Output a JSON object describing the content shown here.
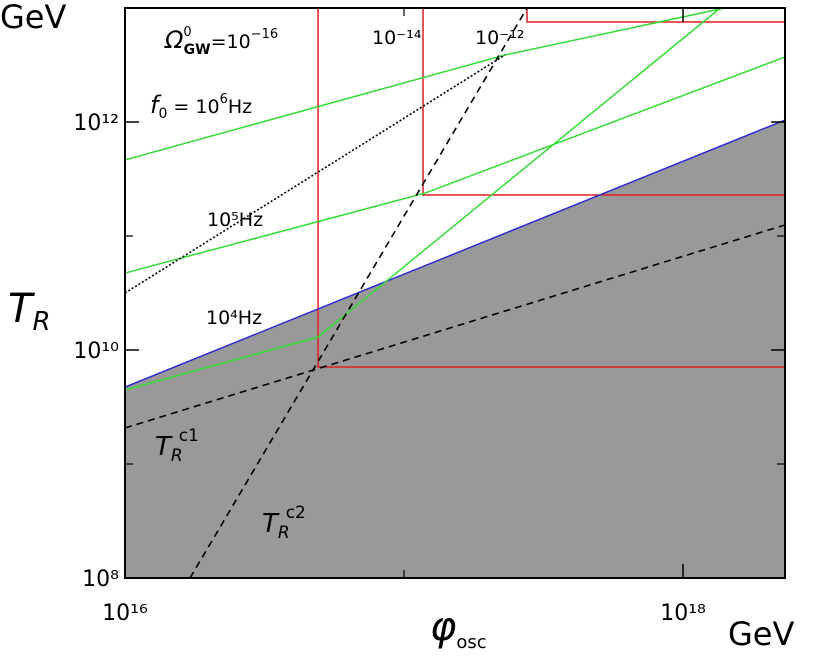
{
  "chart_data": {
    "type": "line",
    "x_label": [
      "φ",
      "osc"
    ],
    "y_label": [
      "T",
      "R"
    ],
    "x_unit": "GeV",
    "y_unit": "GeV",
    "xscale": "log",
    "yscale": "log",
    "xlim": [
      1e+16,
      2.32e+18
    ],
    "ylim": [
      100000000.0,
      10000000000000.0
    ],
    "xticks": [
      {
        "value": 1e+16,
        "label": "10¹⁶"
      },
      {
        "value": 1e+18,
        "label": "10¹⁸"
      }
    ],
    "xminor_ticks": [
      1e+17
    ],
    "yticks": [
      {
        "value": 100000000.0,
        "label": "10⁸"
      },
      {
        "value": 10000000000.0,
        "label": "10¹⁰"
      },
      {
        "value": 1000000000000.0,
        "label": "10¹²"
      }
    ],
    "yminor_ticks": [
      1000000000.0,
      100000000000.0
    ],
    "series": [
      {
        "x": [
          1e+16,
          2.32e+18
        ],
        "y": [
          4730000000.0,
          1040000000000.0
        ],
        "color": "#2b2bd6",
        "dash": "solid",
        "area_color": "#999999"
      },
      {
        "x": [
          1e+16,
          2.3e+17,
          1.41e+18
        ],
        "y": [
          465000000000.0,
          3870000000000.0,
          10000000000000.0
        ],
        "color": "#33dd33",
        "dash": "solid"
      },
      {
        "x": [
          1e+16,
          1.19e+17,
          2.32e+18
        ],
        "y": [
          47300000000.0,
          238000000000.0,
          3720000000000.0
        ],
        "color": "#33dd33",
        "dash": "solid"
      },
      {
        "x": [
          1e+16,
          4.92e+16,
          1.36e+18
        ],
        "y": [
          4460000000.0,
          13000000000.0,
          10000000000000.0
        ],
        "color": "#33dd33",
        "dash": "solid"
      },
      {
        "x": [
          1.71e+16,
          2.76e+17
        ],
        "y": [
          100000000.0,
          10000000000000.0
        ],
        "color": "#000000",
        "dash": "dashed"
      },
      {
        "x": [
          1e+16,
          2.32e+18
        ],
        "y": [
          2070000000.0,
          125000000000.0
        ],
        "color": "#000000",
        "dash": "dashed"
      },
      {
        "x": [
          1e+16,
          2.3e+17
        ],
        "y": [
          31600000000.0,
          3870000000000.0
        ],
        "color": "#000000",
        "dash": "dotted"
      }
    ],
    "boxes": {
      "color": "#e02020",
      "x": [
        4.92e+16,
        1.17e+17,
        2.76e+17
      ],
      "y": [
        7100000000.0,
        229000000000.0,
        7530000000000.0
      ]
    },
    "annotations": {
      "omega": [
        "Ω",
        "0",
        "GW",
        "=10",
        "−16"
      ],
      "omega14": "10⁻¹⁴",
      "omega12": "10⁻¹²",
      "f6": [
        "f",
        "0",
        " = 10",
        "6",
        "Hz"
      ],
      "f5": "10⁵Hz",
      "f4": "10⁴Hz",
      "tc1": [
        "T",
        "R",
        "c1"
      ],
      "tc2": [
        "T",
        "R",
        "c2"
      ]
    }
  }
}
